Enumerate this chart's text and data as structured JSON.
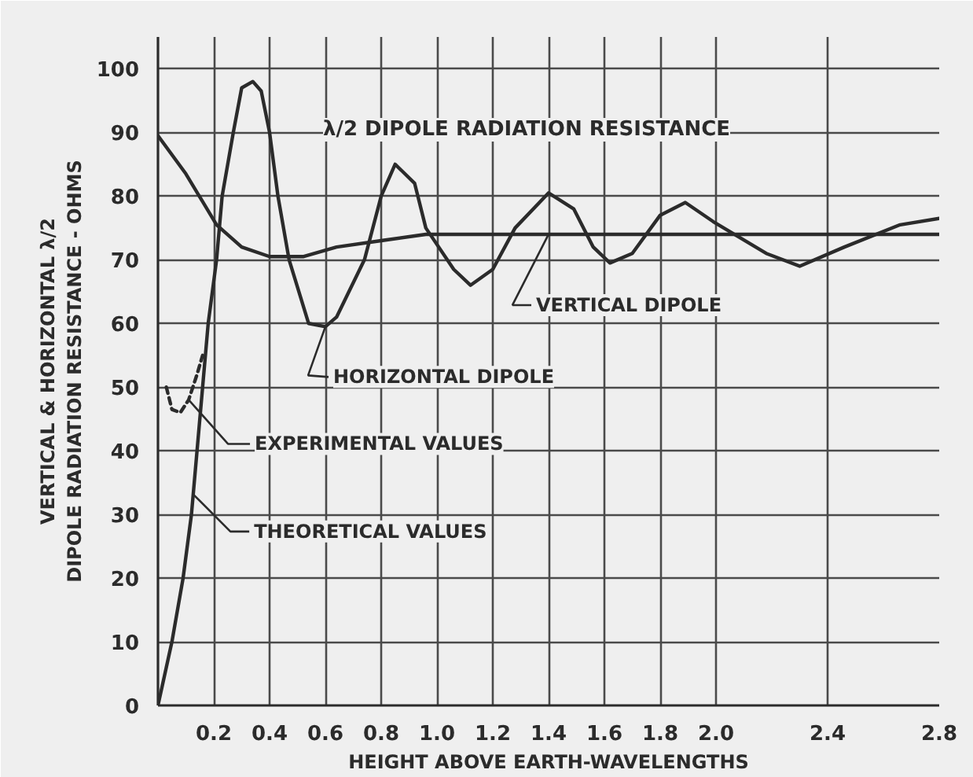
{
  "chart_data": {
    "type": "line",
    "title": "λ/2 DIPOLE RADIATION RESISTANCE",
    "xlabel": "HEIGHT ABOVE EARTH-WAVELENGTHS",
    "ylabel": "VERTICAL & HORIZONTAL λ/2\nDIPOLE RADIATION RESISTANCE - OHMS",
    "xlim": [
      0,
      2.8
    ],
    "ylim": [
      0,
      105
    ],
    "xticks": [
      0.2,
      0.4,
      0.6,
      0.8,
      {
        "value": 1,
        "label": "1.0"
      },
      1.2,
      1.4,
      1.6,
      1.8,
      {
        "value": 2,
        "label": "2.0"
      },
      2.4,
      2.8
    ],
    "yticks": [
      0,
      10,
      20,
      30,
      40,
      50,
      60,
      70,
      80,
      90,
      100
    ],
    "grid": true,
    "series": [
      {
        "name": "HORIZONTAL DIPOLE",
        "color": "#2b2b2b",
        "line_style": "solid",
        "x": [
          0,
          0.05,
          0.09,
          0.12,
          0.14,
          0.16,
          0.18,
          0.21,
          0.23,
          0.27,
          0.3,
          0.34,
          0.37,
          0.4,
          0.43,
          0.47,
          0.54,
          0.6,
          0.64,
          0.74,
          0.8,
          0.85,
          0.92,
          0.96,
          1.06,
          1.12,
          1.2,
          1.28,
          1.4,
          1.49,
          1.56,
          1.62,
          1.7,
          1.8,
          1.89,
          1.99,
          2.18,
          2.3,
          2.46,
          2.66,
          2.8
        ],
        "values": [
          0,
          10,
          20,
          30,
          40,
          50,
          60,
          70,
          80,
          90,
          97,
          98,
          96.5,
          90,
          80,
          70,
          60,
          59.5,
          61,
          70,
          80,
          85,
          82,
          75,
          68.5,
          66,
          68.5,
          75,
          80.5,
          78,
          72,
          69.5,
          71,
          77,
          79,
          76,
          71,
          69,
          72,
          75.5,
          76.5
        ]
      },
      {
        "name": "VERTICAL DIPOLE",
        "color": "#2b2b2b",
        "line_style": "solid",
        "x": [
          0,
          0.1,
          0.21,
          0.3,
          0.4,
          0.52,
          0.64,
          0.8,
          0.96,
          1.4,
          2.8
        ],
        "values": [
          89.5,
          83.5,
          75.5,
          72,
          70.5,
          70.5,
          72,
          73,
          74,
          74,
          74
        ]
      },
      {
        "name": "EXPERIMENTAL VALUES",
        "color": "#2b2b2b",
        "line_style": "dashed",
        "x": [
          0.03,
          0.05,
          0.08,
          0.11,
          0.14,
          0.16
        ],
        "values": [
          50,
          46.5,
          46,
          48,
          52,
          55
        ]
      }
    ],
    "annotations": [
      {
        "text": "THEORETICAL VALUES",
        "x": 0.13,
        "y": 33
      }
    ]
  }
}
